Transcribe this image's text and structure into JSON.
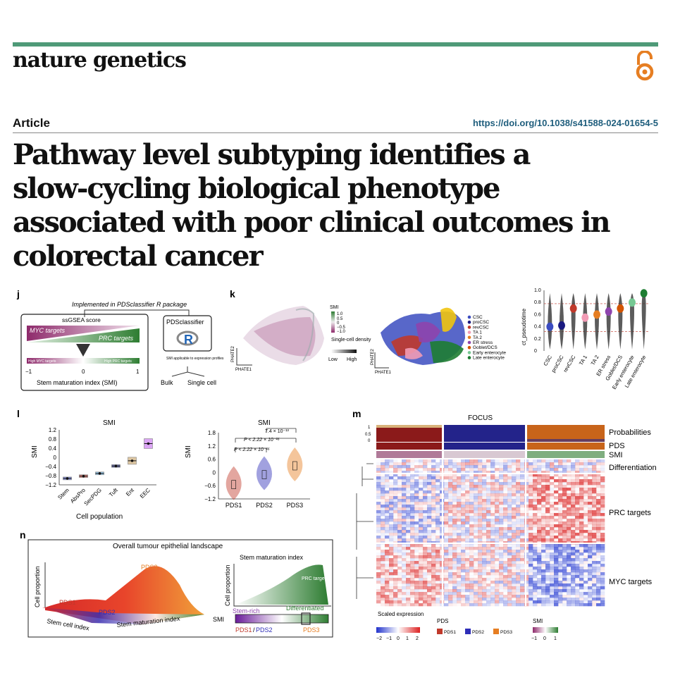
{
  "journal": "nature genetics",
  "article_type": "Article",
  "doi": "https://doi.org/10.1038/s41588-024-01654-5",
  "title_lines": [
    "Pathway level subtyping identifies a",
    "slow-cycling biological phenotype",
    "associated with poor clinical outcomes in",
    "colorectal cancer"
  ],
  "panel_j": {
    "label": "j",
    "implemented": "Implemented in PDSclassifier R package",
    "ssgsea": "ssGSEA score",
    "myc": "MYC targets",
    "prc": "PRC targets",
    "high_myc": "High MYC targets",
    "high_prc": "High PRC targets",
    "ticks": [
      "−1",
      "0",
      "1"
    ],
    "smi_axis": "Stem maturation index (SMI)",
    "pdsclassifier": "PDSclassifier",
    "r_logo": "R",
    "applicable": "SMI applicable to expression profiles",
    "bulk": "Bulk",
    "single_cell": "Single cell"
  },
  "panel_k": {
    "label": "k",
    "smi_legend": "SMI",
    "smi_ticks": [
      "1.0",
      "0.5",
      "0",
      "−0.5",
      "−1.0"
    ],
    "density": "Single-cell density",
    "low": "Low",
    "high": "High",
    "phate1": "PHATE1",
    "phate2": "PHATE2",
    "cell_types": [
      {
        "name": "CSC",
        "color": "#3b4cc0"
      },
      {
        "name": "proCSC",
        "color": "#1a1a80"
      },
      {
        "name": "revCSC",
        "color": "#c0392b"
      },
      {
        "name": "TA 1",
        "color": "#f29bb5"
      },
      {
        "name": "TA 2",
        "color": "#e67e22"
      },
      {
        "name": "ER stress",
        "color": "#8e44ad"
      },
      {
        "name": "Goblet/DCS",
        "color": "#d35400"
      },
      {
        "name": "Early enterocyte",
        "color": "#76c893"
      },
      {
        "name": "Late enterocyte",
        "color": "#1e7d32"
      }
    ],
    "pseudotime_label": "ct_pseudotime",
    "pseudotime_ticks": [
      "1.0",
      "0.8",
      "0.6",
      "0.4",
      "0.2",
      "0"
    ]
  },
  "panel_l": {
    "label": "l",
    "left_title": "SMI",
    "left_ylabel": "SMI",
    "left_xlabel": "Cell population",
    "left_yticks": [
      "1.2",
      "0.8",
      "0.4",
      "0",
      "−0.4",
      "−0.8",
      "−1.2"
    ],
    "right_title": "SMI",
    "right_ylabel": "SMI",
    "right_yticks": [
      "1.8",
      "1.2",
      "0.6",
      "0",
      "−0.6",
      "−1.2"
    ],
    "p1": "7.4 × 10⁻¹³",
    "p2": "P < 2.22 × 10⁻¹⁶",
    "p3": "P < 2.22 × 10⁻¹⁶"
  },
  "panel_m": {
    "label": "m",
    "title": "FOCUS",
    "prob_ticks": [
      "1",
      "0.5",
      "0"
    ],
    "rows": [
      "Probabilities",
      "PDS",
      "SMI",
      "Differentiation",
      "PRC targets",
      "MYC targets"
    ],
    "scaled": "Scaled expression",
    "scale_ticks": [
      "−2",
      "−1",
      "0",
      "1",
      "2"
    ],
    "pds_legend": "PDS",
    "smi_legend": "SMI",
    "smi_ticks": [
      "−1",
      "0",
      "1"
    ]
  },
  "panel_n": {
    "label": "n",
    "title": "Overall tumour epithelial landscape",
    "cell_proportion": "Cell proportion",
    "stem_cell_index": "Stem cell index",
    "stem_maturation_index": "Stem maturation index",
    "smi_label": "SMI",
    "stem_rich": "Stem-rich",
    "differentiated": "Differentiated",
    "prc_targets": "PRC targets",
    "pds_sep": "/"
  },
  "chart_data": [
    {
      "type": "violin",
      "ylabel": "ct_pseudotime",
      "categories": [
        "CSC",
        "proCSC",
        "revCSC",
        "TA 1",
        "TA 2",
        "ER stress",
        "Goblet/DCS",
        "Early enterocyte",
        "Late enterocyte"
      ],
      "medians": [
        0.4,
        0.42,
        0.7,
        0.55,
        0.6,
        0.65,
        0.7,
        0.8,
        0.95
      ],
      "ylim": [
        0,
        1.0
      ]
    },
    {
      "type": "box",
      "title": "SMI",
      "xlabel": "Cell population",
      "ylabel": "SMI",
      "categories": [
        "Stem",
        "AbsPro",
        "SecPDG",
        "Tuft",
        "Ent",
        "EEC"
      ],
      "values": [
        -0.92,
        -0.82,
        -0.7,
        -0.38,
        -0.15,
        0.6
      ],
      "colors": [
        "#3b4cc0",
        "#c0392b",
        "#5dade2",
        "#1a237e",
        "#c8a165",
        "#c56cf0"
      ],
      "ylim": [
        -1.2,
        1.2
      ]
    },
    {
      "type": "violin",
      "title": "SMI",
      "ylabel": "SMI",
      "categories": [
        "PDS1",
        "PDS2",
        "PDS3"
      ],
      "medians": [
        -0.55,
        -0.1,
        0.3
      ],
      "colors": [
        "#c0392b",
        "#2e2eb8",
        "#e67e22"
      ],
      "ylim": [
        -1.2,
        1.8
      ]
    }
  ],
  "colors": {
    "pds1": "#c0392b",
    "pds2": "#2e2eb8",
    "pds3": "#e67e22",
    "smi_low": "#8e2a6b",
    "smi_high": "#2e7d32",
    "bar": "#4f9a78",
    "doi": "#1f5e7d"
  }
}
